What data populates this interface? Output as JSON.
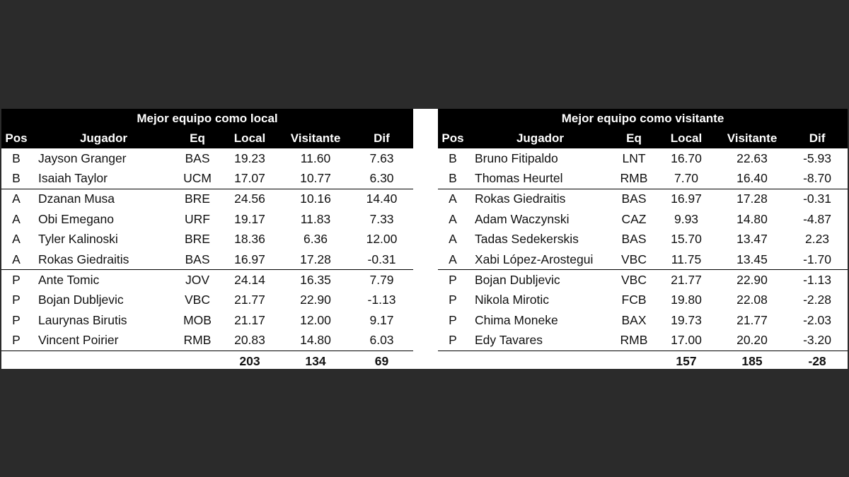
{
  "tables": [
    {
      "title": "Mejor equipo como local",
      "headers": [
        "Pos",
        "Jugador",
        "Eq",
        "Local",
        "Visitante",
        "Dif"
      ],
      "rows": [
        {
          "pos": "B",
          "player": "Jayson Granger",
          "team": "BAS",
          "local": "19.23",
          "visit": "11.60",
          "dif": "7.63"
        },
        {
          "pos": "B",
          "player": "Isaiah Taylor",
          "team": "UCM",
          "local": "17.07",
          "visit": "10.77",
          "dif": "6.30"
        },
        {
          "pos": "A",
          "player": "Dzanan Musa",
          "team": "BRE",
          "local": "24.56",
          "visit": "10.16",
          "dif": "14.40"
        },
        {
          "pos": "A",
          "player": "Obi Emegano",
          "team": "URF",
          "local": "19.17",
          "visit": "11.83",
          "dif": "7.33"
        },
        {
          "pos": "A",
          "player": "Tyler Kalinoski",
          "team": "BRE",
          "local": "18.36",
          "visit": "6.36",
          "dif": "12.00"
        },
        {
          "pos": "A",
          "player": "Rokas Giedraitis",
          "team": "BAS",
          "local": "16.97",
          "visit": "17.28",
          "dif": "-0.31"
        },
        {
          "pos": "P",
          "player": "Ante Tomic",
          "team": "JOV",
          "local": "24.14",
          "visit": "16.35",
          "dif": "7.79"
        },
        {
          "pos": "P",
          "player": "Bojan Dubljevic",
          "team": "VBC",
          "local": "21.77",
          "visit": "22.90",
          "dif": "-1.13"
        },
        {
          "pos": "P",
          "player": "Laurynas Birutis",
          "team": "MOB",
          "local": "21.17",
          "visit": "12.00",
          "dif": "9.17"
        },
        {
          "pos": "P",
          "player": "Vincent Poirier",
          "team": "RMB",
          "local": "20.83",
          "visit": "14.80",
          "dif": "6.03"
        }
      ],
      "totals": {
        "local": "203",
        "visit": "134",
        "dif": "69"
      }
    },
    {
      "title": "Mejor equipo como visitante",
      "headers": [
        "Pos",
        "Jugador",
        "Eq",
        "Local",
        "Visitante",
        "Dif"
      ],
      "rows": [
        {
          "pos": "B",
          "player": "Bruno Fitipaldo",
          "team": "LNT",
          "local": "16.70",
          "visit": "22.63",
          "dif": "-5.93"
        },
        {
          "pos": "B",
          "player": "Thomas Heurtel",
          "team": "RMB",
          "local": "7.70",
          "visit": "16.40",
          "dif": "-8.70"
        },
        {
          "pos": "A",
          "player": "Rokas Giedraitis",
          "team": "BAS",
          "local": "16.97",
          "visit": "17.28",
          "dif": "-0.31"
        },
        {
          "pos": "A",
          "player": "Adam Waczynski",
          "team": "CAZ",
          "local": "9.93",
          "visit": "14.80",
          "dif": "-4.87"
        },
        {
          "pos": "A",
          "player": "Tadas Sedekerskis",
          "team": "BAS",
          "local": "15.70",
          "visit": "13.47",
          "dif": "2.23"
        },
        {
          "pos": "A",
          "player": "Xabi López-Arostegui",
          "team": "VBC",
          "local": "11.75",
          "visit": "13.45",
          "dif": "-1.70"
        },
        {
          "pos": "P",
          "player": "Bojan Dubljevic",
          "team": "VBC",
          "local": "21.77",
          "visit": "22.90",
          "dif": "-1.13"
        },
        {
          "pos": "P",
          "player": "Nikola Mirotic",
          "team": "FCB",
          "local": "19.80",
          "visit": "22.08",
          "dif": "-2.28"
        },
        {
          "pos": "P",
          "player": "Chima Moneke",
          "team": "BAX",
          "local": "19.73",
          "visit": "21.77",
          "dif": "-2.03"
        },
        {
          "pos": "P",
          "player": "Edy Tavares",
          "team": "RMB",
          "local": "17.00",
          "visit": "20.20",
          "dif": "-3.20"
        }
      ],
      "totals": {
        "local": "157",
        "visit": "185",
        "dif": "-28"
      }
    }
  ]
}
